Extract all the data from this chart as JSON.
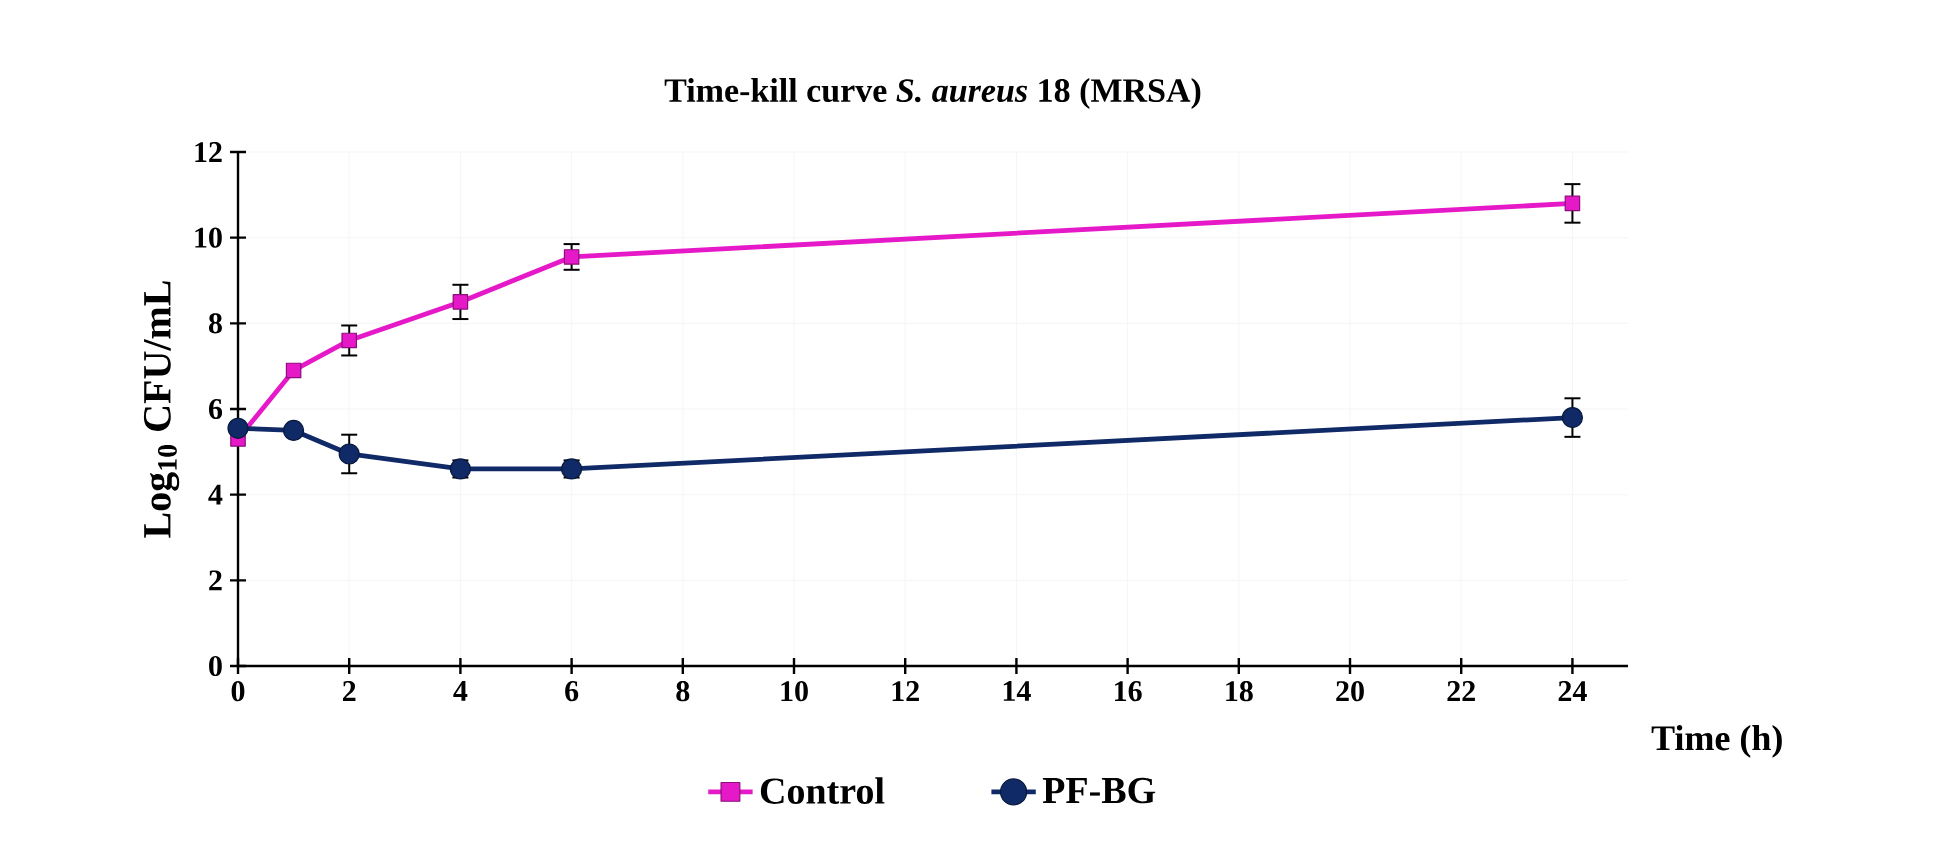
{
  "chart_data": {
    "type": "line",
    "title": "Time-kill curve *S. aureus* 18 (MRSA)",
    "xlabel": "Time (h)",
    "ylabel": "Log$_{10}$ CFU/mL",
    "x": [
      0,
      1,
      2,
      4,
      6,
      24
    ],
    "series": [
      {
        "name": "Control",
        "color": "#e619c8",
        "marker": "square",
        "values": [
          5.3,
          6.9,
          7.6,
          8.5,
          9.55,
          10.8
        ],
        "errors": [
          null,
          null,
          0.35,
          0.4,
          0.3,
          0.45
        ]
      },
      {
        "name": "PF-BG",
        "color": "#0f2a66",
        "marker": "circle",
        "values": [
          5.55,
          5.5,
          4.95,
          4.6,
          4.6,
          5.8
        ],
        "errors": [
          null,
          null,
          0.45,
          0.2,
          0.2,
          0.45
        ]
      }
    ],
    "xlim": [
      0,
      25
    ],
    "xticks": [
      0,
      2,
      4,
      6,
      8,
      10,
      12,
      14,
      16,
      18,
      20,
      22,
      24
    ],
    "ylim": [
      0,
      12
    ],
    "yticks": [
      0,
      2,
      4,
      6,
      8,
      10,
      12
    ],
    "grid": true,
    "legend": "bottom",
    "line_style": "solid"
  }
}
